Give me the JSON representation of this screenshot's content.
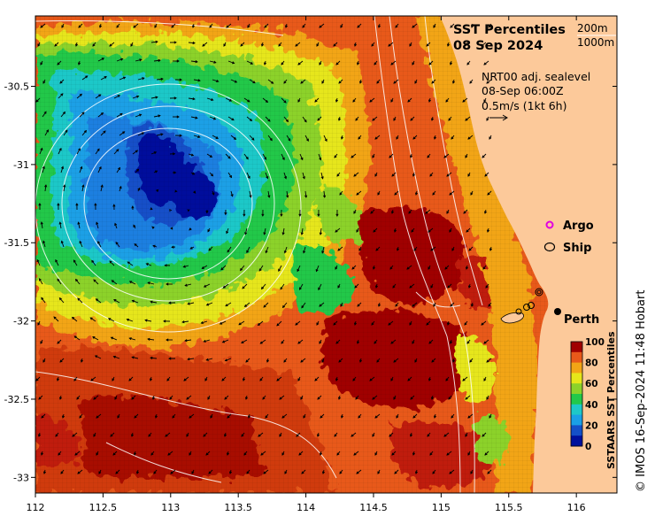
{
  "map": {
    "title_line1": "SST Percentiles",
    "title_line2": "08 Sep 2024",
    "legend_contour_200": "200m",
    "legend_contour_1000": "1000m",
    "current_info_line1": "NRT00 adj. sealevel",
    "current_info_line2": "08-Sep 06:00Z",
    "current_info_line3": "0.5m/s (1kt 6h)",
    "argo_label": "Argo",
    "ship_label": "Ship",
    "city_label": "Perth",
    "credit": "© IMOS 16-Sep-2024 11:48 Hobart",
    "colors": {
      "land": "#fcc99a",
      "ocean_deep_blue": "#00109c",
      "ocean_mid_blue": "#1f7fe0",
      "argo_marker": "#e000e0",
      "vector": "#000000",
      "bathy_contour": "#ffffff"
    }
  },
  "colorbar": {
    "title": "SSTAARS SST Percentiles",
    "ticks": [
      "100",
      "80",
      "60",
      "40",
      "20",
      "0"
    ],
    "colors": [
      "#a00000",
      "#e8591a",
      "#f2a516",
      "#e6e61a",
      "#8cd22a",
      "#22c84a",
      "#1ec8c8",
      "#1aa0e6",
      "#1450c8",
      "#00109c"
    ]
  },
  "axes": {
    "x_ticks": [
      "112",
      "112.5",
      "113",
      "113.5",
      "114",
      "114.5",
      "115",
      "115.5",
      "116"
    ],
    "y_ticks": [
      "-30.5",
      "-31",
      "-31.5",
      "-32",
      "-32.5",
      "-33"
    ],
    "xlim": [
      112,
      116.3
    ],
    "ylim": [
      -33.1,
      -30.05
    ]
  }
}
